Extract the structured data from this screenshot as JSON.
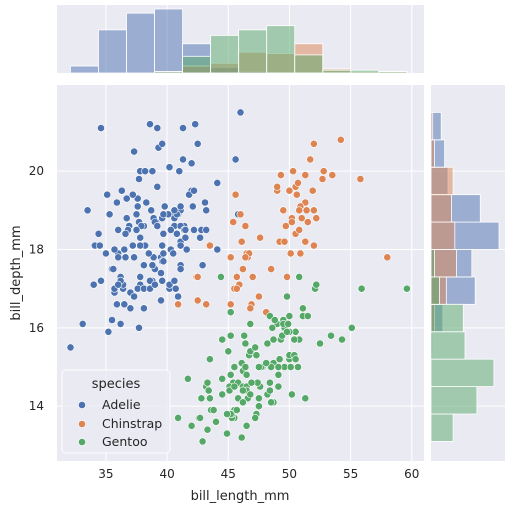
{
  "chart_data": {
    "type": "scatter",
    "kind": "jointplot with marginal histograms",
    "xlabel": "bill_length_mm",
    "ylabel": "bill_depth_mm",
    "xlim": [
      31,
      61
    ],
    "ylim": [
      12.6,
      22.2
    ],
    "x_ticks": [
      35,
      40,
      45,
      50,
      55,
      60
    ],
    "y_ticks": [
      14,
      16,
      18,
      20
    ],
    "grid": true,
    "legend": {
      "title": "species",
      "placement": "lower-left",
      "entries": [
        "Adelie",
        "Chinstrap",
        "Gentoo"
      ]
    },
    "colors": {
      "Adelie": "#4c72b0",
      "Chinstrap": "#dd8452",
      "Gentoo": "#55a868",
      "background": "#eaeaf2",
      "grid": "#ffffff"
    },
    "series": [
      {
        "name": "Adelie",
        "x": [
          39.1,
          39.5,
          40.3,
          36.7,
          39.3,
          38.9,
          39.2,
          34.1,
          42.0,
          37.8,
          37.8,
          41.1,
          38.6,
          34.6,
          36.6,
          38.7,
          42.5,
          34.4,
          46.0,
          37.8,
          37.7,
          35.9,
          38.2,
          38.8,
          35.3,
          40.6,
          40.5,
          37.9,
          40.5,
          39.5,
          37.2,
          39.5,
          40.9,
          36.4,
          39.2,
          38.8,
          42.2,
          37.6,
          39.8,
          36.5,
          40.8,
          36.0,
          44.1,
          37.0,
          39.6,
          41.1,
          37.5,
          36.0,
          42.3,
          39.6,
          40.1,
          35.0,
          42.0,
          34.5,
          41.4,
          39.0,
          40.6,
          36.5,
          37.6,
          35.7,
          41.3,
          37.6,
          41.1,
          36.4,
          41.6,
          35.5,
          41.1,
          35.9,
          41.8,
          33.5,
          39.7,
          39.6,
          45.8,
          35.5,
          42.8,
          40.9,
          37.2,
          36.2,
          42.1,
          34.6,
          42.9,
          36.7,
          35.1,
          37.3,
          41.3,
          36.3,
          36.9,
          38.3,
          38.9,
          35.7,
          41.1,
          34.0,
          39.6,
          36.2,
          40.8,
          38.1,
          40.3,
          33.1,
          43.2,
          35.0,
          41.0,
          37.7,
          37.8,
          37.9,
          39.7,
          38.6,
          38.2,
          38.1,
          43.2,
          38.1,
          45.6,
          39.7,
          42.2,
          39.6,
          42.7,
          38.6,
          37.3,
          35.7,
          41.1,
          36.2,
          37.7,
          40.2,
          41.4,
          35.2,
          40.6,
          38.8,
          41.5,
          39.0,
          44.1,
          38.5,
          43.1,
          36.8,
          37.5,
          38.1,
          41.1,
          35.6,
          40.2,
          37.0,
          39.7,
          40.2,
          40.6,
          32.1,
          40.7,
          37.3,
          39.0,
          39.2,
          36.6,
          36.0,
          37.8,
          36.0,
          41.5
        ],
        "y": [
          18.7,
          17.4,
          18.0,
          19.3,
          20.6,
          17.8,
          19.6,
          18.1,
          20.2,
          17.1,
          17.3,
          17.6,
          21.2,
          21.1,
          17.8,
          19.0,
          20.7,
          18.4,
          21.5,
          18.3,
          18.7,
          19.2,
          18.1,
          17.2,
          18.9,
          18.6,
          17.9,
          18.6,
          18.9,
          16.7,
          18.1,
          17.8,
          18.9,
          17.0,
          21.1,
          20.0,
          18.5,
          19.3,
          19.1,
          18.0,
          18.4,
          18.5,
          19.7,
          16.9,
          18.8,
          19.0,
          18.9,
          17.9,
          21.2,
          17.7,
          18.9,
          17.9,
          19.5,
          18.1,
          18.6,
          17.5,
          18.8,
          16.6,
          19.1,
          16.9,
          21.1,
          17.0,
          18.2,
          17.1,
          18.0,
          16.2,
          19.1,
          16.6,
          19.4,
          19.0,
          18.4,
          17.2,
          18.9,
          17.5,
          18.5,
          16.8,
          19.4,
          16.1,
          19.1,
          17.2,
          17.6,
          18.8,
          19.4,
          17.8,
          20.3,
          19.5,
          18.6,
          19.2,
          18.8,
          18.0,
          18.1,
          17.1,
          18.1,
          17.3,
          18.9,
          18.6,
          18.5,
          16.1,
          18.5,
          17.9,
          20.0,
          16.0,
          20.0,
          18.6,
          18.9,
          17.2,
          20.0,
          17.0,
          19.0,
          16.5,
          20.3,
          17.7,
          19.5,
          20.7,
          18.3,
          17.0,
          20.5,
          17.0,
          18.6,
          17.2,
          19.8,
          17.0,
          18.5,
          15.9,
          19.0,
          17.6,
          18.3,
          17.1,
          18.0,
          17.9,
          19.2,
          18.5,
          18.5,
          17.6,
          17.5,
          17.5,
          20.1,
          16.5,
          17.9,
          17.1,
          17.2,
          15.5,
          17.0,
          16.8,
          18.7,
          18.6,
          18.4,
          17.8,
          18.1,
          17.1,
          18.5
        ]
      },
      {
        "name": "Chinstrap",
        "x": [
          46.5,
          50.0,
          51.3,
          45.4,
          52.7,
          45.2,
          46.1,
          51.3,
          46.0,
          51.3,
          46.6,
          51.7,
          47.0,
          52.0,
          45.9,
          50.5,
          50.3,
          58.0,
          46.4,
          49.2,
          42.4,
          48.5,
          43.2,
          50.6,
          46.7,
          52.0,
          50.5,
          49.5,
          46.4,
          52.8,
          40.9,
          54.2,
          42.5,
          51.0,
          49.7,
          47.5,
          47.6,
          52.0,
          46.9,
          53.5,
          49.0,
          46.2,
          50.9,
          45.5,
          50.9,
          50.8,
          50.1,
          49.0,
          51.5,
          49.8,
          48.1,
          51.4,
          45.7,
          50.7,
          42.5,
          52.2,
          45.2,
          49.3,
          50.2,
          45.6,
          51.9,
          46.8,
          45.7,
          55.8,
          43.5,
          49.6,
          50.8,
          50.2
        ],
        "y": [
          17.9,
          19.5,
          19.2,
          18.7,
          19.8,
          17.8,
          18.2,
          18.2,
          18.9,
          19.9,
          17.8,
          20.3,
          17.3,
          18.1,
          17.1,
          19.6,
          20.0,
          17.8,
          18.6,
          18.2,
          17.3,
          17.5,
          16.6,
          19.4,
          17.9,
          19.0,
          18.4,
          19.0,
          17.8,
          20.0,
          16.6,
          20.8,
          16.7,
          18.8,
          18.6,
          16.8,
          18.3,
          20.7,
          16.6,
          19.9,
          19.5,
          17.5,
          19.1,
          17.0,
          17.9,
          18.5,
          17.9,
          19.6,
          18.7,
          17.3,
          16.4,
          19.0,
          17.3,
          19.7,
          17.3,
          18.8,
          16.6,
          19.9,
          18.8,
          19.4,
          19.5,
          16.5,
          17.0,
          19.8,
          18.1,
          18.2,
          19.0,
          18.7
        ]
      },
      {
        "name": "Gentoo",
        "x": [
          46.1,
          50.0,
          48.7,
          50.0,
          47.6,
          46.5,
          45.4,
          46.7,
          43.3,
          46.8,
          40.9,
          49.0,
          45.5,
          48.4,
          45.8,
          49.3,
          42.0,
          49.2,
          46.2,
          48.7,
          50.2,
          45.1,
          46.5,
          46.3,
          42.9,
          46.1,
          44.5,
          47.8,
          48.2,
          50.0,
          47.3,
          42.8,
          45.1,
          59.6,
          49.1,
          48.4,
          42.6,
          44.4,
          44.0,
          48.7,
          42.7,
          49.6,
          45.3,
          49.6,
          50.5,
          43.6,
          45.5,
          50.5,
          44.9,
          45.2,
          46.6,
          48.5,
          45.1,
          50.1,
          46.5,
          45.0,
          43.8,
          45.5,
          43.2,
          50.4,
          45.3,
          46.2,
          45.7,
          54.3,
          45.8,
          49.8,
          46.2,
          49.5,
          43.5,
          50.7,
          47.7,
          46.4,
          48.2,
          46.5,
          46.4,
          48.6,
          47.5,
          51.1,
          45.2,
          45.2,
          49.1,
          52.5,
          47.4,
          50.0,
          44.9,
          50.8,
          43.4,
          51.3,
          47.5,
          52.1,
          47.5,
          52.2,
          45.5,
          49.5,
          44.5,
          50.8,
          49.4,
          46.9,
          48.4,
          51.1,
          48.5,
          55.9,
          47.2,
          49.1,
          47.3,
          46.8,
          41.7,
          53.4,
          43.3,
          48.1,
          50.5,
          49.8,
          43.5,
          51.5,
          46.2,
          55.1,
          44.5,
          48.8,
          47.2,
          46.8,
          50.4,
          45.2,
          49.9
        ],
        "y": [
          13.2,
          16.3,
          14.1,
          15.2,
          14.5,
          13.5,
          14.6,
          15.3,
          13.4,
          15.4,
          13.7,
          16.1,
          13.7,
          14.6,
          14.6,
          15.7,
          13.5,
          15.2,
          14.5,
          15.1,
          14.3,
          14.5,
          14.5,
          15.8,
          13.1,
          15.1,
          14.3,
          15.0,
          14.3,
          15.3,
          15.3,
          14.2,
          14.5,
          17.0,
          14.8,
          16.3,
          13.7,
          17.3,
          13.6,
          15.7,
          13.7,
          16.0,
          13.7,
          15.0,
          15.9,
          13.9,
          13.9,
          15.9,
          13.3,
          15.8,
          14.2,
          14.1,
          14.4,
          15.0,
          14.4,
          15.4,
          13.9,
          15.0,
          14.5,
          15.3,
          13.8,
          14.9,
          13.9,
          15.7,
          14.2,
          16.8,
          14.4,
          16.2,
          14.2,
          15.0,
          15.0,
          15.6,
          15.6,
          14.8,
          15.0,
          16.0,
          14.2,
          16.3,
          13.8,
          16.4,
          14.5,
          15.6,
          14.6,
          15.9,
          13.8,
          17.3,
          14.4,
          14.2,
          14.0,
          17.0,
          15.0,
          17.1,
          14.5,
          16.1,
          14.7,
          15.7,
          15.8,
          14.6,
          14.4,
          16.5,
          15.0,
          17.0,
          15.5,
          15.0,
          13.8,
          16.1,
          14.7,
          15.8,
          14.6,
          15.1,
          15.2,
          15.9,
          15.2,
          16.3,
          14.1,
          16.0,
          15.7,
          16.2,
          13.7,
          14.3,
          15.7,
          14.8,
          16.1
        ]
      }
    ]
  }
}
